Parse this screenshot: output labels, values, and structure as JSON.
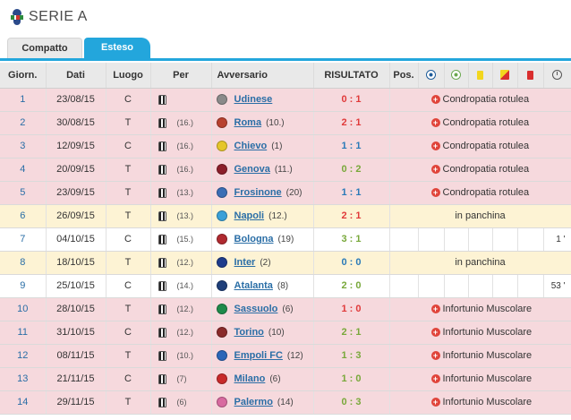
{
  "page": {
    "title": "SERIE A"
  },
  "tabs": [
    {
      "label": "Compatto",
      "active": false
    },
    {
      "label": "Esteso",
      "active": true
    }
  ],
  "table": {
    "headers": {
      "giornata": "Giorn.",
      "data": "Dati",
      "luogo": "Luogo",
      "per": "Per",
      "avversario": "Avversario",
      "risultato": "RISULTATO",
      "posizione": "Pos."
    },
    "header_icons": [
      "goal-icon",
      "assist-icon",
      "yellow-card-icon",
      "yellow-red-card-icon",
      "red-card-icon",
      "clock-icon"
    ],
    "rows": [
      {
        "giornata": "1",
        "data": "23/08/15",
        "luogo": "C",
        "per_rank": "",
        "avversario": "Udinese",
        "avv_rank": "",
        "risultato": "0 : 1",
        "result_kind": "loss",
        "type": "injury",
        "status": "Condropatia rotulea",
        "minuti": "",
        "crest": "#8a8a8a"
      },
      {
        "giornata": "2",
        "data": "30/08/15",
        "luogo": "T",
        "per_rank": "(16.)",
        "avversario": "Roma",
        "avv_rank": "(10.)",
        "risultato": "2 : 1",
        "result_kind": "win",
        "type": "injury",
        "status": "Condropatia rotulea",
        "minuti": "",
        "crest": "#b8412f"
      },
      {
        "giornata": "3",
        "data": "12/09/15",
        "luogo": "C",
        "per_rank": "(16.)",
        "avversario": "Chievo",
        "avv_rank": "(1)",
        "risultato": "1 : 1",
        "result_kind": "draw",
        "type": "injury",
        "status": "Condropatia rotulea",
        "minuti": "",
        "crest": "#e5c62a"
      },
      {
        "giornata": "4",
        "data": "20/09/15",
        "luogo": "T",
        "per_rank": "(16.)",
        "avversario": "Genova",
        "avv_rank": "(11.)",
        "risultato": "0 : 2",
        "result_kind": "gwin",
        "type": "injury",
        "status": "Condropatia rotulea",
        "minuti": "",
        "crest": "#8b1f2a"
      },
      {
        "giornata": "5",
        "data": "23/09/15",
        "luogo": "T",
        "per_rank": "(13.)",
        "avversario": "Frosinone",
        "avv_rank": "(20)",
        "risultato": "1 : 1",
        "result_kind": "draw",
        "type": "injury",
        "status": "Condropatia rotulea",
        "minuti": "",
        "crest": "#3a6eb5"
      },
      {
        "giornata": "6",
        "data": "26/09/15",
        "luogo": "T",
        "per_rank": "(13.)",
        "avversario": "Napoli",
        "avv_rank": "(12.)",
        "risultato": "2 : 1",
        "result_kind": "win",
        "type": "bench",
        "status": "in panchina",
        "minuti": "",
        "crest": "#3aa0d8"
      },
      {
        "giornata": "7",
        "data": "04/10/15",
        "luogo": "C",
        "per_rank": "(15.)",
        "avversario": "Bologna",
        "avv_rank": "(19)",
        "risultato": "3 : 1",
        "result_kind": "gwin",
        "type": "played",
        "status": "",
        "minuti": "1 '",
        "crest": "#b02a30"
      },
      {
        "giornata": "8",
        "data": "18/10/15",
        "luogo": "T",
        "per_rank": "(12.)",
        "avversario": "Inter",
        "avv_rank": "(2)",
        "risultato": "0 : 0",
        "result_kind": "draw",
        "type": "bench",
        "status": "in panchina",
        "minuti": "",
        "crest": "#1e3c8c"
      },
      {
        "giornata": "9",
        "data": "25/10/15",
        "luogo": "C",
        "per_rank": "(14.)",
        "avversario": "Atalanta",
        "avv_rank": "(8)",
        "risultato": "2 : 0",
        "result_kind": "gwin",
        "type": "played",
        "status": "",
        "minuti": "53 '",
        "crest": "#1f3f7a"
      },
      {
        "giornata": "10",
        "data": "28/10/15",
        "luogo": "T",
        "per_rank": "(12.)",
        "avversario": "Sassuolo",
        "avv_rank": "(6)",
        "risultato": "1 : 0",
        "result_kind": "win",
        "type": "injury",
        "status": "Infortunio Muscolare",
        "minuti": "",
        "crest": "#1e8a4a"
      },
      {
        "giornata": "11",
        "data": "31/10/15",
        "luogo": "C",
        "per_rank": "(12.)",
        "avversario": "Torino",
        "avv_rank": "(10)",
        "risultato": "2 : 1",
        "result_kind": "gwin",
        "type": "injury",
        "status": "Infortunio Muscolare",
        "minuti": "",
        "crest": "#8a2a2a"
      },
      {
        "giornata": "12",
        "data": "08/11/15",
        "luogo": "T",
        "per_rank": "(10.)",
        "avversario": "Empoli FC",
        "avv_rank": "(12)",
        "risultato": "1 : 3",
        "result_kind": "gwin",
        "type": "injury",
        "status": "Infortunio Muscolare",
        "minuti": "",
        "crest": "#2a66b8"
      },
      {
        "giornata": "13",
        "data": "21/11/15",
        "luogo": "C",
        "per_rank": "(7)",
        "avversario": "Milano",
        "avv_rank": "(6)",
        "risultato": "1 : 0",
        "result_kind": "gwin",
        "type": "injury",
        "status": "Infortunio Muscolare",
        "minuti": "",
        "crest": "#c82a2a"
      },
      {
        "giornata": "14",
        "data": "29/11/15",
        "luogo": "T",
        "per_rank": "(6)",
        "avversario": "Palermo",
        "avv_rank": "(14)",
        "risultato": "0 : 3",
        "result_kind": "gwin",
        "type": "injury",
        "status": "Infortunio Muscolare",
        "minuti": "",
        "crest": "#d86aa0"
      }
    ]
  }
}
